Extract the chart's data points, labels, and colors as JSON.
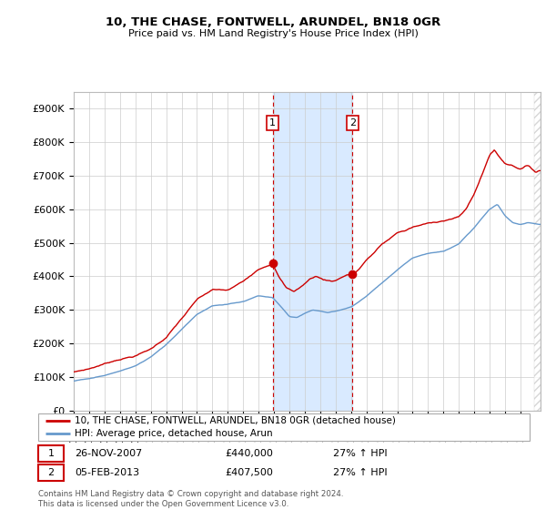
{
  "title": "10, THE CHASE, FONTWELL, ARUNDEL, BN18 0GR",
  "subtitle": "Price paid vs. HM Land Registry's House Price Index (HPI)",
  "ylabel_ticks": [
    "£0",
    "£100K",
    "£200K",
    "£300K",
    "£400K",
    "£500K",
    "£600K",
    "£700K",
    "£800K",
    "£900K"
  ],
  "ytick_values": [
    0,
    100000,
    200000,
    300000,
    400000,
    500000,
    600000,
    700000,
    800000,
    900000
  ],
  "ylim": [
    0,
    950000
  ],
  "xlim_start": 1995.0,
  "xlim_end": 2025.3,
  "purchase1_x": 2007.91,
  "purchase1_y": 440000,
  "purchase2_x": 2013.09,
  "purchase2_y": 407500,
  "shade_x1": 2007.91,
  "shade_x2": 2013.09,
  "line1_color": "#cc0000",
  "line2_color": "#6699cc",
  "shade_color": "#d9eaff",
  "grid_color": "#cccccc",
  "legend_line1": "10, THE CHASE, FONTWELL, ARUNDEL, BN18 0GR (detached house)",
  "legend_line2": "HPI: Average price, detached house, Arun",
  "footnote": "Contains HM Land Registry data © Crown copyright and database right 2024.\nThis data is licensed under the Open Government Licence v3.0."
}
